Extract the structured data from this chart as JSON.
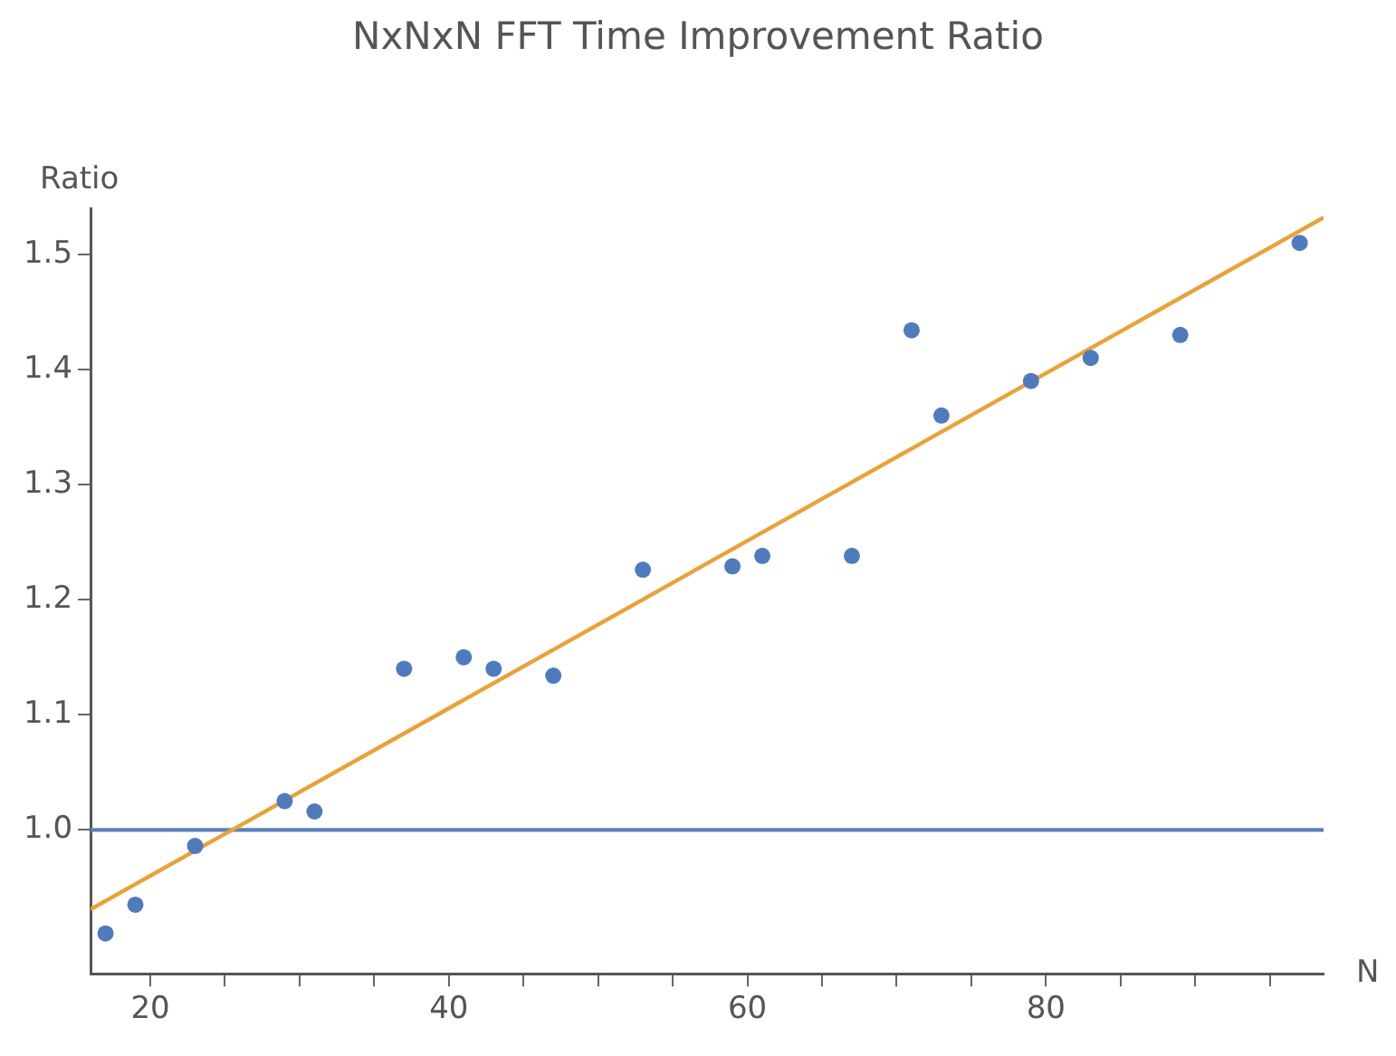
{
  "chart_data": {
    "type": "scatter",
    "title": "NxNxN FFT Time Improvement Ratio",
    "xlabel": "N",
    "ylabel": "Ratio",
    "legend": false,
    "xlim": [
      16,
      98.6
    ],
    "ylim": [
      0.875,
      1.54
    ],
    "xticks": [
      {
        "value": 25,
        "label": null
      },
      {
        "value": 30,
        "label": null
      },
      {
        "value": 35,
        "label": null
      },
      20,
      40,
      60,
      80,
      {
        "value": 45,
        "label": null
      },
      {
        "value": 50,
        "label": null
      },
      {
        "value": 55,
        "label": null
      },
      {
        "value": 65,
        "label": null
      },
      {
        "value": 70,
        "label": null
      },
      {
        "value": 75,
        "label": null
      },
      {
        "value": 85,
        "label": null
      },
      {
        "value": 90,
        "label": null
      },
      {
        "value": 95,
        "label": null
      }
    ],
    "yticks": [
      {
        "value": 1.0,
        "label": "1.0"
      },
      1.1,
      1.2,
      1.3,
      1.4,
      1.5
    ],
    "ref_lines": [
      {
        "axis": "y",
        "value": 1.0,
        "color": "#5b7fbd"
      }
    ],
    "series": [
      {
        "marker": "circle",
        "color": "#4f7bbd",
        "x": [
          17,
          19,
          23,
          29,
          31,
          37,
          41,
          43,
          47,
          53,
          59,
          61,
          67,
          71,
          73,
          79,
          83,
          89,
          97
        ],
        "values": [
          0.91,
          0.935,
          0.986,
          1.025,
          1.016,
          1.14,
          1.15,
          1.14,
          1.134,
          1.226,
          1.229,
          1.238,
          1.238,
          1.434,
          1.36,
          1.39,
          1.41,
          1.43,
          1.51
        ]
      },
      {
        "type": "line",
        "marker": "none",
        "color": "#e8a23a",
        "x": [
          16,
          98.6
        ],
        "values": [
          0.931,
          1.532
        ]
      }
    ]
  }
}
